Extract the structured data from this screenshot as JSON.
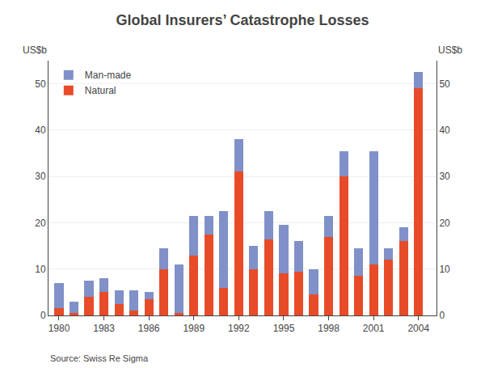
{
  "chart_data": {
    "type": "bar",
    "title": "Global Insurers’ Catastrophe Losses",
    "ylabel": "US$b",
    "y2label": "US$b",
    "annotations": [
      "Source: Swiss Re Sigma"
    ],
    "x": [
      1980,
      1981,
      1982,
      1983,
      1984,
      1985,
      1986,
      1987,
      1988,
      1989,
      1990,
      1991,
      1992,
      1993,
      1994,
      1995,
      1996,
      1997,
      1998,
      1999,
      2000,
      2001,
      2002,
      2003,
      2004
    ],
    "series": [
      {
        "name": "Natural",
        "color": "#e84b28",
        "values": [
          1.5,
          0.5,
          4.0,
          5.0,
          2.5,
          1.0,
          3.5,
          10.0,
          0.5,
          13.0,
          17.5,
          6.0,
          31.0,
          10.0,
          16.5,
          9.0,
          9.5,
          4.5,
          17.0,
          30.0,
          8.5,
          11.0,
          12.0,
          16.0,
          49.0
        ]
      },
      {
        "name": "Man-made",
        "color": "#8090c8",
        "values": [
          5.5,
          2.5,
          3.5,
          3.0,
          3.0,
          4.5,
          1.5,
          4.5,
          10.5,
          8.5,
          4.0,
          16.5,
          7.0,
          5.0,
          6.0,
          10.5,
          6.5,
          5.5,
          4.5,
          5.5,
          6.0,
          24.5,
          2.5,
          3.0,
          3.5
        ]
      }
    ],
    "stacked": true,
    "xlim": [
      1979.3,
      2005.2
    ],
    "xticks": [
      1980,
      1983,
      1986,
      1989,
      1992,
      1995,
      1998,
      2001,
      2004
    ],
    "ylim": [
      0,
      55
    ],
    "yticks": [
      0,
      10,
      20,
      30,
      40,
      50
    ],
    "y2lim": [
      0,
      55
    ],
    "y2ticks": [
      0,
      10,
      20,
      30,
      40,
      50
    ],
    "grid": true,
    "legend": "upper left"
  }
}
